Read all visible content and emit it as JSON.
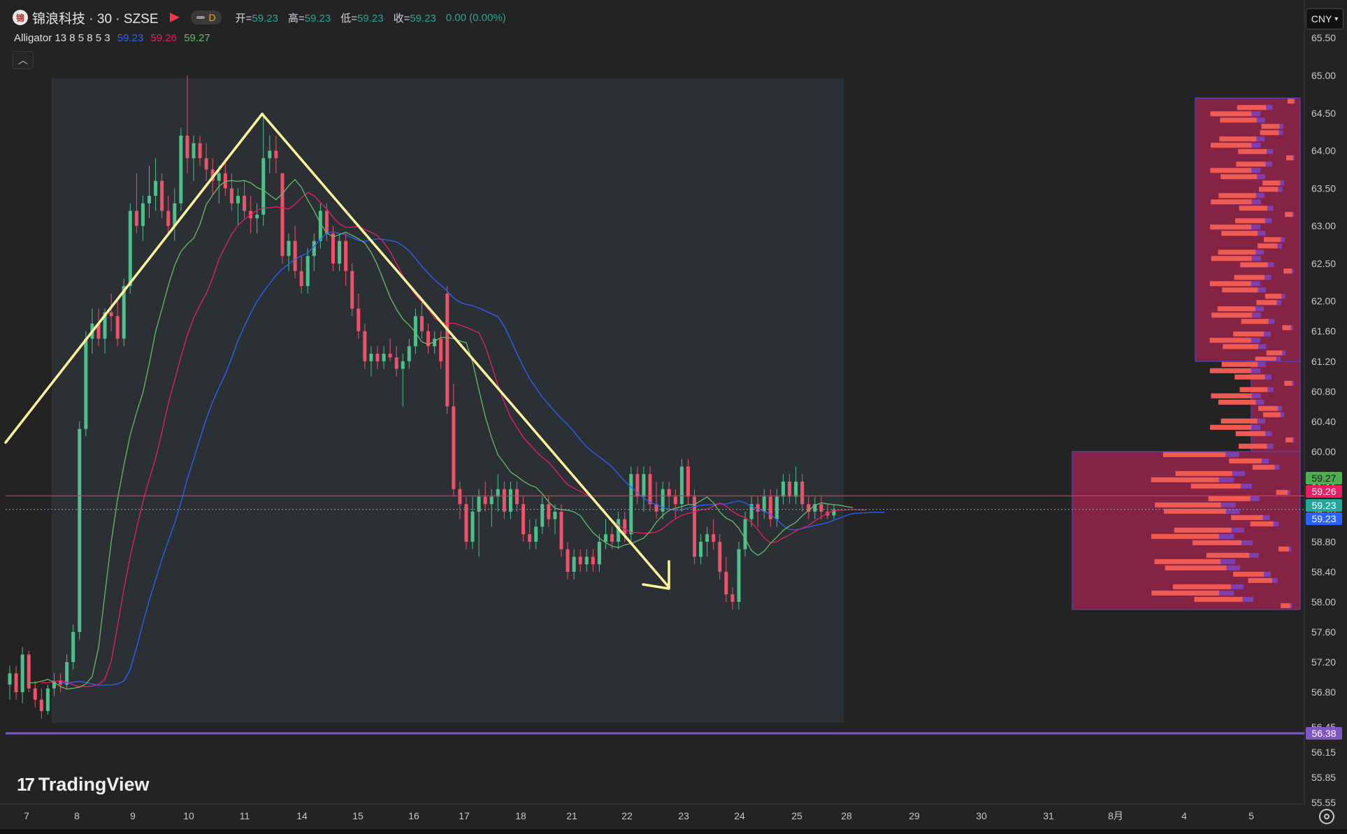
{
  "header": {
    "logo_text": "锦",
    "symbol": "锦浪科技 · 30 · SZSE",
    "session_badge": "D",
    "open_label": "开=",
    "open": "59.23",
    "high_label": "高=",
    "high": "59.23",
    "low_label": "低=",
    "low": "59.23",
    "close_label": "收=",
    "close": "59.23",
    "change": "0.00 (0.00%)"
  },
  "indicator": {
    "name": "Alligator 13 8 5 8 5 3",
    "jaw": "59.23",
    "teeth": "59.26",
    "lips": "59.27",
    "colors": {
      "jaw": "#2962ff",
      "teeth": "#e91e63",
      "lips": "#66bb6a"
    }
  },
  "toolbar": {
    "collapse_icon": "chevron-up-icon",
    "currency": "CNY"
  },
  "branding": {
    "text": "TradingView"
  },
  "chart_data": {
    "type": "candlestick",
    "ylim": [
      55.55,
      65.5
    ],
    "y_ticks": [
      "65.50",
      "65.00",
      "64.50",
      "64.00",
      "63.50",
      "63.00",
      "62.50",
      "62.00",
      "61.60",
      "61.20",
      "60.80",
      "60.40",
      "60.00",
      "59.60",
      "59.20",
      "58.80",
      "58.40",
      "58.00",
      "57.60",
      "57.20",
      "56.80",
      "56.45",
      "56.15",
      "55.85",
      "55.55"
    ],
    "price_tags": [
      {
        "value": 59.27,
        "label": "59.27",
        "color": "#4caf50"
      },
      {
        "value": 59.26,
        "label": "59.26",
        "color": "#e91e63"
      },
      {
        "value": 59.23,
        "label": "59.23",
        "color": "#26a69a"
      },
      {
        "value": 59.23,
        "label": "59.23",
        "color": "#2962ff"
      },
      {
        "value": 56.38,
        "label": "56.38",
        "color": "#7e57c2"
      }
    ],
    "x_ticks": [
      "7",
      "8",
      "9",
      "10",
      "11",
      "14",
      "15",
      "16",
      "17",
      "18",
      "21",
      "22",
      "23",
      "24",
      "25",
      "28",
      "29",
      "30",
      "31",
      "8月",
      "4",
      "5"
    ],
    "horizontal_lines": [
      {
        "value": 59.41,
        "color": "#f23645",
        "style": "solid"
      },
      {
        "value": 59.23,
        "color": "#9598a1",
        "style": "dotted"
      },
      {
        "value": 56.38,
        "color": "#7e57c2",
        "style": "solid"
      }
    ],
    "candles": [
      [
        56.9,
        57.15,
        56.7,
        57.05
      ],
      [
        57.05,
        57.15,
        56.7,
        56.8
      ],
      [
        56.8,
        57.4,
        56.65,
        57.3
      ],
      [
        57.3,
        57.35,
        56.8,
        56.85
      ],
      [
        56.85,
        56.95,
        56.6,
        56.7
      ],
      [
        56.7,
        56.85,
        56.45,
        56.55
      ],
      [
        56.55,
        56.9,
        56.5,
        56.85
      ],
      [
        56.85,
        57.05,
        56.75,
        56.95
      ],
      [
        56.95,
        57.05,
        56.8,
        56.9
      ],
      [
        56.9,
        57.3,
        56.85,
        57.2
      ],
      [
        57.2,
        57.7,
        57.1,
        57.6
      ],
      [
        57.6,
        60.4,
        57.5,
        60.3
      ],
      [
        60.3,
        61.6,
        60.2,
        61.5
      ],
      [
        61.5,
        61.9,
        61.3,
        61.7
      ],
      [
        61.7,
        61.9,
        61.4,
        61.5
      ],
      [
        61.5,
        61.9,
        61.3,
        61.85
      ],
      [
        61.85,
        62.1,
        61.6,
        61.8
      ],
      [
        61.8,
        62.0,
        61.4,
        61.5
      ],
      [
        61.5,
        62.3,
        61.4,
        62.2
      ],
      [
        62.2,
        63.3,
        62.1,
        63.2
      ],
      [
        63.2,
        63.7,
        62.9,
        63.0
      ],
      [
        63.0,
        63.4,
        62.8,
        63.3
      ],
      [
        63.3,
        63.8,
        63.1,
        63.4
      ],
      [
        63.4,
        63.9,
        63.2,
        63.6
      ],
      [
        63.6,
        63.7,
        63.1,
        63.2
      ],
      [
        63.2,
        63.4,
        62.9,
        63.0
      ],
      [
        63.0,
        63.5,
        62.8,
        63.3
      ],
      [
        63.3,
        64.3,
        63.2,
        64.2
      ],
      [
        64.2,
        65.0,
        63.7,
        63.9
      ],
      [
        63.9,
        64.2,
        63.6,
        64.1
      ],
      [
        64.1,
        64.2,
        63.8,
        63.9
      ],
      [
        63.9,
        64.1,
        63.6,
        63.75
      ],
      [
        63.75,
        63.9,
        63.4,
        63.6
      ],
      [
        63.6,
        63.8,
        63.3,
        63.7
      ],
      [
        63.7,
        63.9,
        63.4,
        63.5
      ],
      [
        63.5,
        63.7,
        63.2,
        63.3
      ],
      [
        63.3,
        63.5,
        63.0,
        63.4
      ],
      [
        63.4,
        63.6,
        63.1,
        63.2
      ],
      [
        63.2,
        63.4,
        62.9,
        63.1
      ],
      [
        63.1,
        63.3,
        62.9,
        63.15
      ],
      [
        63.15,
        64.5,
        63.0,
        63.9
      ],
      [
        63.9,
        64.2,
        63.7,
        64.0
      ],
      [
        64.0,
        64.2,
        63.7,
        63.9
      ],
      [
        63.7,
        63.7,
        62.5,
        62.6
      ],
      [
        62.6,
        62.9,
        62.4,
        62.8
      ],
      [
        62.8,
        63.0,
        62.3,
        62.4
      ],
      [
        62.4,
        62.6,
        62.1,
        62.2
      ],
      [
        62.2,
        62.7,
        62.1,
        62.6
      ],
      [
        62.6,
        62.9,
        62.4,
        62.8
      ],
      [
        62.8,
        63.3,
        62.7,
        63.2
      ],
      [
        63.2,
        63.3,
        62.8,
        62.9
      ],
      [
        62.9,
        63.0,
        62.4,
        62.5
      ],
      [
        62.5,
        62.9,
        62.4,
        62.8
      ],
      [
        62.8,
        62.9,
        62.2,
        62.4
      ],
      [
        62.4,
        62.5,
        61.8,
        61.9
      ],
      [
        61.9,
        62.1,
        61.5,
        61.6
      ],
      [
        61.6,
        61.7,
        61.1,
        61.2
      ],
      [
        61.2,
        61.4,
        61.0,
        61.3
      ],
      [
        61.3,
        61.4,
        61.1,
        61.2
      ],
      [
        61.2,
        61.4,
        61.1,
        61.3
      ],
      [
        61.3,
        61.5,
        61.2,
        61.25
      ],
      [
        61.25,
        61.4,
        61.0,
        61.1
      ],
      [
        61.1,
        61.3,
        60.6,
        61.2
      ],
      [
        61.2,
        61.5,
        61.1,
        61.4
      ],
      [
        61.4,
        61.9,
        61.3,
        61.8
      ],
      [
        61.8,
        62.0,
        61.5,
        61.6
      ],
      [
        61.6,
        61.7,
        61.3,
        61.4
      ],
      [
        61.4,
        61.6,
        61.3,
        61.5
      ],
      [
        61.5,
        61.6,
        61.1,
        61.2
      ],
      [
        62.1,
        62.2,
        60.5,
        60.6
      ],
      [
        60.6,
        60.9,
        59.4,
        59.5
      ],
      [
        59.5,
        59.6,
        59.1,
        59.3
      ],
      [
        59.3,
        59.4,
        58.7,
        58.8
      ],
      [
        58.8,
        59.4,
        58.7,
        59.2
      ],
      [
        59.2,
        59.5,
        58.6,
        59.4
      ],
      [
        59.4,
        59.6,
        59.2,
        59.3
      ],
      [
        59.3,
        59.5,
        59.0,
        59.4
      ],
      [
        59.4,
        59.7,
        59.2,
        59.5
      ],
      [
        59.5,
        59.6,
        59.1,
        59.2
      ],
      [
        59.2,
        59.6,
        59.1,
        59.5
      ],
      [
        59.5,
        59.6,
        59.2,
        59.3
      ],
      [
        59.3,
        59.4,
        58.8,
        58.9
      ],
      [
        58.9,
        59.1,
        58.7,
        58.8
      ],
      [
        58.8,
        59.1,
        58.7,
        59.0
      ],
      [
        59.0,
        59.4,
        58.9,
        59.3
      ],
      [
        59.3,
        59.4,
        59.0,
        59.1
      ],
      [
        59.1,
        59.3,
        58.9,
        59.2
      ],
      [
        59.2,
        59.3,
        58.6,
        58.7
      ],
      [
        58.7,
        58.8,
        58.3,
        58.4
      ],
      [
        58.4,
        58.7,
        58.3,
        58.6
      ],
      [
        58.6,
        58.7,
        58.4,
        58.5
      ],
      [
        58.5,
        58.7,
        58.4,
        58.6
      ],
      [
        58.6,
        58.7,
        58.4,
        58.5
      ],
      [
        58.5,
        58.9,
        58.4,
        58.8
      ],
      [
        58.8,
        59.1,
        58.7,
        58.9
      ],
      [
        58.9,
        59.0,
        58.7,
        58.8
      ],
      [
        58.8,
        59.2,
        58.7,
        59.1
      ],
      [
        59.1,
        59.2,
        58.8,
        58.9
      ],
      [
        58.9,
        59.8,
        58.8,
        59.7
      ],
      [
        59.7,
        59.8,
        59.3,
        59.4
      ],
      [
        59.4,
        59.8,
        59.2,
        59.7
      ],
      [
        59.7,
        59.8,
        59.2,
        59.3
      ],
      [
        59.3,
        59.6,
        59.1,
        59.2
      ],
      [
        59.2,
        59.6,
        59.1,
        59.5
      ],
      [
        59.5,
        59.6,
        59.2,
        59.4
      ],
      [
        59.4,
        59.5,
        59.1,
        59.3
      ],
      [
        59.3,
        59.9,
        59.2,
        59.8
      ],
      [
        59.8,
        59.9,
        59.3,
        59.4
      ],
      [
        59.4,
        59.5,
        58.5,
        58.6
      ],
      [
        58.6,
        58.9,
        58.5,
        58.8
      ],
      [
        58.8,
        59.0,
        58.6,
        58.9
      ],
      [
        58.9,
        59.1,
        58.7,
        58.8
      ],
      [
        58.8,
        58.9,
        58.3,
        58.4
      ],
      [
        58.4,
        58.6,
        58.0,
        58.1
      ],
      [
        58.1,
        58.2,
        57.9,
        58.0
      ],
      [
        58.0,
        58.8,
        57.9,
        58.7
      ],
      [
        58.7,
        59.2,
        58.6,
        59.1
      ],
      [
        59.1,
        59.4,
        59.0,
        59.3
      ],
      [
        59.3,
        59.4,
        59.0,
        59.2
      ],
      [
        59.2,
        59.5,
        59.1,
        59.4
      ],
      [
        59.4,
        59.5,
        59.0,
        59.1
      ],
      [
        59.1,
        59.5,
        59.0,
        59.4
      ],
      [
        59.4,
        59.7,
        59.3,
        59.6
      ],
      [
        59.6,
        59.7,
        59.3,
        59.4
      ],
      [
        59.4,
        59.8,
        59.3,
        59.6
      ],
      [
        59.6,
        59.7,
        59.2,
        59.3
      ],
      [
        59.3,
        59.4,
        59.1,
        59.2
      ],
      [
        59.2,
        59.4,
        59.1,
        59.3
      ],
      [
        59.3,
        59.4,
        59.1,
        59.2
      ],
      [
        59.2,
        59.3,
        59.1,
        59.15
      ],
      [
        59.15,
        59.3,
        59.1,
        59.23
      ]
    ],
    "drawings": [
      {
        "type": "trend-line",
        "from": [
          "7",
          60.0
        ],
        "to": [
          "11",
          64.5
        ],
        "color": "#fff59d"
      },
      {
        "type": "arrow",
        "from": [
          "11",
          64.5
        ],
        "to": [
          "22",
          58.2
        ],
        "color": "#fff59d"
      }
    ],
    "volume_profile": [
      {
        "from": 61.2,
        "to": 64.7
      },
      {
        "from": 60.0,
        "to": 61.2
      },
      {
        "from": 57.9,
        "to": 60.0
      }
    ]
  }
}
